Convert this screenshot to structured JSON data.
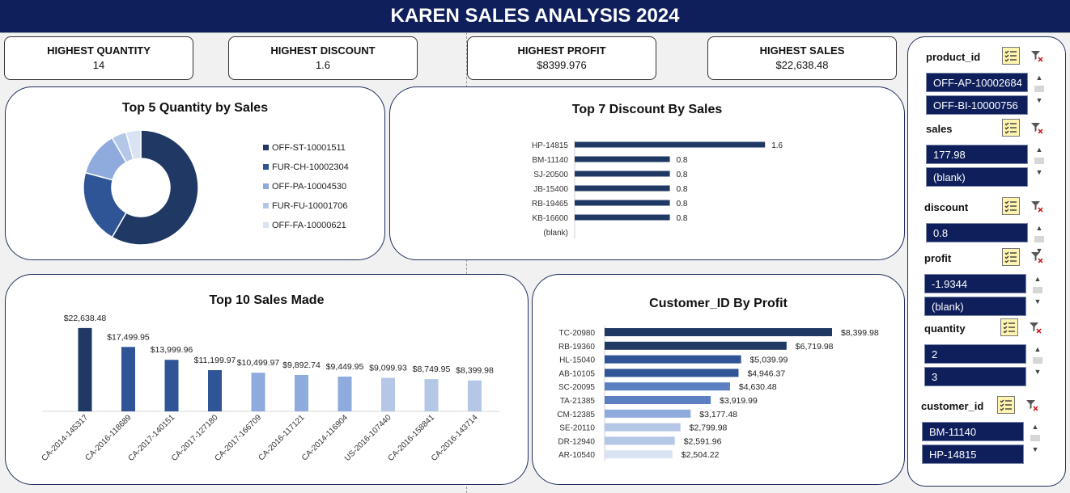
{
  "header": {
    "title": "KAREN SALES ANALYSIS 2024"
  },
  "kpis": [
    {
      "label": "HIGHEST QUANTITY",
      "value": "14"
    },
    {
      "label": "HIGHEST DISCOUNT",
      "value": "1.6"
    },
    {
      "label": "HIGHEST PROFIT",
      "value": "$8399.976"
    },
    {
      "label": "HIGHEST SALES",
      "value": "$22,638.48"
    }
  ],
  "colors": {
    "dark": "#1f3864",
    "mid": "#2f5597",
    "light": "#8faadc",
    "lighter": "#b4c7e7",
    "lightest": "#dae3f3",
    "header": "#0e1f5b"
  },
  "chart_data": [
    {
      "type": "pie",
      "title": "Top 5 Quantity by Sales",
      "categories": [
        "OFF-ST-10001511",
        "FUR-CH-10002304",
        "OFF-PA-10004530",
        "FUR-FU-10001706",
        "OFF-FA-10000621"
      ],
      "values": [
        14,
        5,
        3,
        1,
        1
      ],
      "colors": [
        "#1f3864",
        "#2f5597",
        "#8faadc",
        "#b4c7e7",
        "#dae3f3"
      ],
      "legend": "right"
    },
    {
      "type": "bar",
      "orientation": "horizontal",
      "title": "Top 7 Discount By Sales",
      "categories": [
        "HP-14815",
        "BM-11140",
        "SJ-20500",
        "JB-15400",
        "RB-19465",
        "KB-16600",
        "(blank)"
      ],
      "values": [
        1.6,
        0.8,
        0.8,
        0.8,
        0.8,
        0.8,
        null
      ],
      "labels": [
        "1.6",
        "0.8",
        "0.8",
        "0.8",
        "0.8",
        "0.8",
        ""
      ],
      "xlim": [
        0,
        3.2
      ]
    },
    {
      "type": "bar",
      "title": "Top 10 Sales Made",
      "categories": [
        "CA-2014-145317",
        "CA-2016-118689",
        "CA-2017-140151",
        "CA-2017-127180",
        "CA-2017-166709",
        "CA-2016-117121",
        "CA-2014-116904",
        "US-2016-107440",
        "CA-2016-158841",
        "CA-2016-143714"
      ],
      "values": [
        22638.48,
        17499.95,
        13999.96,
        11199.97,
        10499.97,
        9892.74,
        9449.95,
        9099.93,
        8749.95,
        8399.98
      ],
      "labels": [
        "$22,638.48",
        "$17,499.95",
        "$13,999.96",
        "$11,199.97",
        "$10,499.97",
        "$9,892.74",
        "$9,449.95",
        "$9,099.93",
        "$8,749.95",
        "$8,399.98"
      ],
      "colors": [
        "#1f3864",
        "#2f5597",
        "#2f5597",
        "#2f5597",
        "#8faadc",
        "#8faadc",
        "#8faadc",
        "#b4c7e7",
        "#b4c7e7",
        "#b4c7e7"
      ],
      "ylim": [
        0,
        27000
      ]
    },
    {
      "type": "bar",
      "orientation": "horizontal",
      "title": "Customer_ID By Profit",
      "categories": [
        "TC-20980",
        "RB-19360",
        "HL-15040",
        "AB-10105",
        "SC-20095",
        "TA-21385",
        "CM-12385",
        "SE-20110",
        "DR-12940",
        "AR-10540"
      ],
      "values": [
        8399.98,
        6719.98,
        5039.99,
        4946.37,
        4630.48,
        3919.99,
        3177.48,
        2799.98,
        2591.96,
        2504.22
      ],
      "labels": [
        "$8,399.98",
        "$6,719.98",
        "$5,039.99",
        "$4,946.37",
        "$4,630.48",
        "$3,919.99",
        "$3,177.48",
        "$2,799.98",
        "$2,591.96",
        "$2,504.22"
      ],
      "colors": [
        "#1f3864",
        "#1f3864",
        "#2f5597",
        "#2f5597",
        "#5b7fc1",
        "#5b7fc1",
        "#8faadc",
        "#b4c7e7",
        "#b4c7e7",
        "#dae3f3"
      ],
      "xlim": [
        0,
        8399.98
      ]
    }
  ],
  "slicers": [
    {
      "title": "product_id",
      "items": [
        "OFF-AP-10002684",
        "OFF-BI-10000756"
      ],
      "icon": "multi-select-icon",
      "clear_icon": "clear-filter-icon"
    },
    {
      "title": "sales",
      "items": [
        "177.98",
        "(blank)"
      ],
      "icon": "multi-select-icon",
      "clear_icon": "clear-filter-icon"
    },
    {
      "title": "discount",
      "items": [
        "0.8"
      ],
      "icon": "multi-select-icon",
      "clear_icon": "clear-filter-icon"
    },
    {
      "title": "profit",
      "items": [
        "-1.9344",
        "(blank)"
      ],
      "icon": "multi-select-icon",
      "clear_icon": "clear-filter-icon"
    },
    {
      "title": "quantity",
      "items": [
        "2",
        "3"
      ],
      "icon": "multi-select-icon",
      "clear_icon": "clear-filter-icon"
    },
    {
      "title": "customer_id",
      "items": [
        "BM-11140",
        "HP-14815"
      ],
      "icon": "multi-select-icon",
      "clear_icon": "clear-filter-icon"
    }
  ]
}
